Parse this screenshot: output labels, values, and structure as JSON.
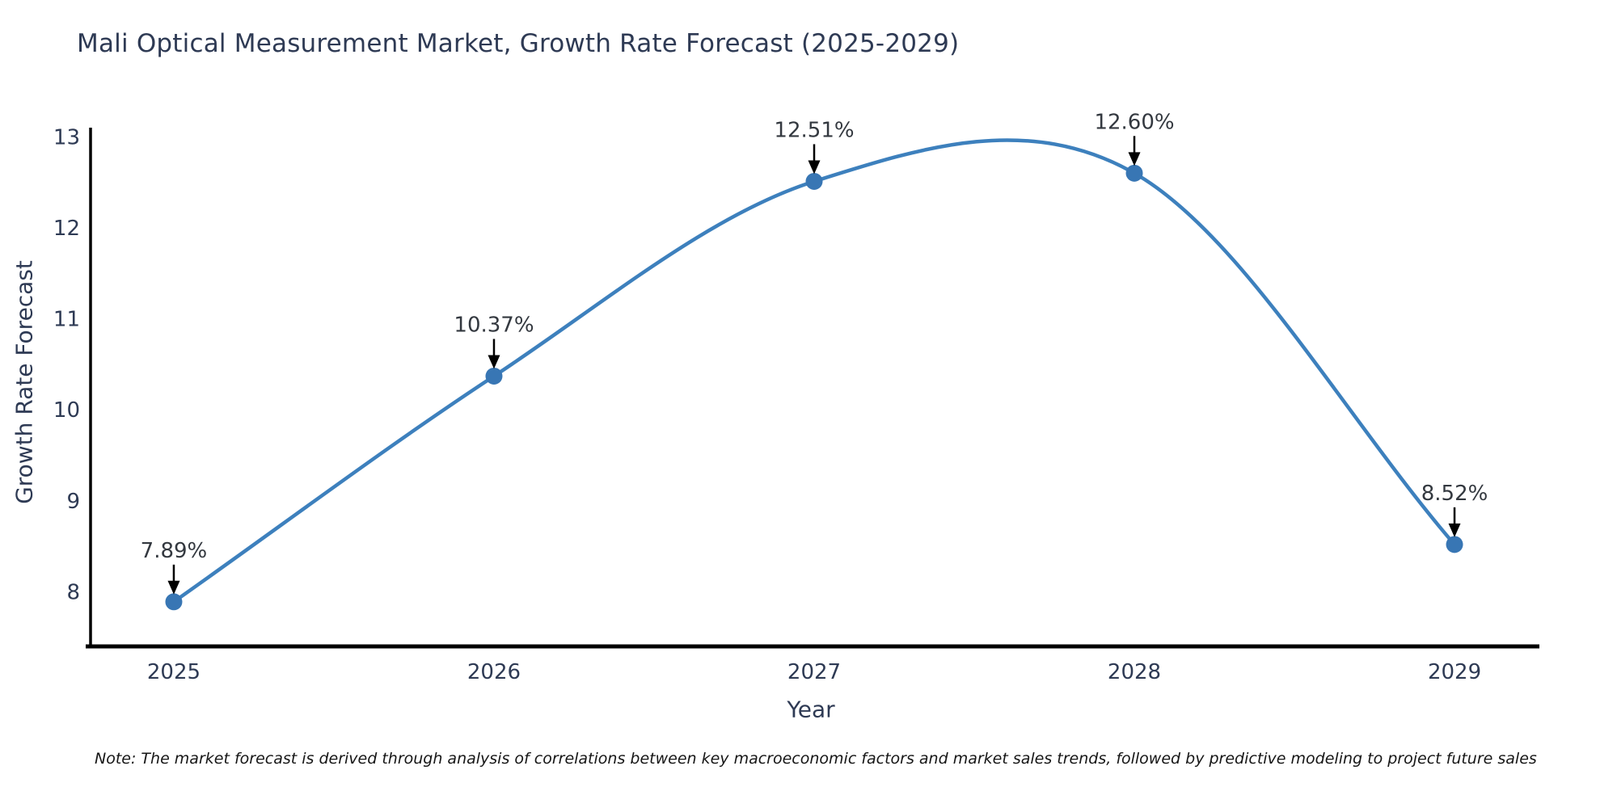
{
  "header": {
    "title": "Mali Optical Measurement Market, Growth Rate Forecast (2025-2029)"
  },
  "chart_data": {
    "type": "line",
    "line_shape": "spline",
    "title": "Mali Optical Measurement Market, Growth Rate Forecast (2025-2029)",
    "xlabel": "Year",
    "ylabel": "Growth Rate Forecast",
    "x": [
      2025,
      2026,
      2027,
      2028,
      2029
    ],
    "values": [
      7.89,
      10.37,
      12.51,
      12.6,
      8.52
    ],
    "point_labels": [
      "7.89%",
      "10.37%",
      "12.51%",
      "12.60%",
      "8.52%"
    ],
    "xticks": [
      "2025",
      "2026",
      "2027",
      "2028",
      "2029"
    ],
    "yticks": [
      8,
      9,
      10,
      11,
      12,
      13
    ],
    "xlim": [
      2024.74,
      2029.26
    ],
    "ylim": [
      7.4,
      13.1
    ],
    "grid": false,
    "legend": false,
    "line_color": "#3d80bd",
    "marker_color": "#3876b4",
    "arrow_color": "#000000",
    "annotation_color": "#33383f",
    "tick_color": "#2e3a54",
    "spine_color": "#000000"
  },
  "footnote": {
    "text": "Note: The market forecast is derived through analysis of correlations between key macroeconomic factors and market sales trends, followed by predictive modeling to project future sales"
  }
}
